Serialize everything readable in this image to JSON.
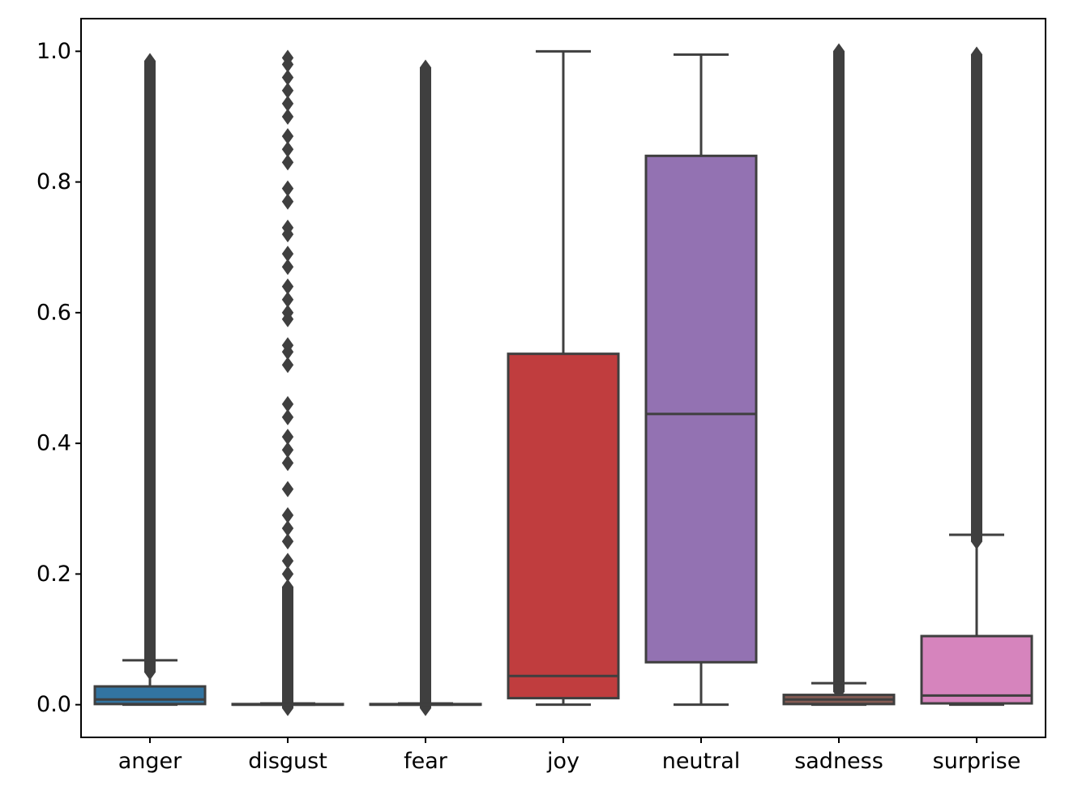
{
  "chart_data": {
    "type": "box",
    "title": "",
    "xlabel": "",
    "ylabel": "",
    "ylim": [
      -0.05,
      1.05
    ],
    "yticks": [
      0.0,
      0.2,
      0.4,
      0.6,
      0.8,
      1.0
    ],
    "ytick_labels": [
      "0.0",
      "0.2",
      "0.4",
      "0.6",
      "0.8",
      "1.0"
    ],
    "grid": false,
    "legend": "none",
    "categories": [
      "anger",
      "disgust",
      "fear",
      "joy",
      "neutral",
      "sadness",
      "surprise"
    ],
    "series": [
      {
        "category": "anger",
        "color": "#3274a1",
        "whislo": 0.0,
        "q1": 0.001,
        "median": 0.008,
        "q3": 0.028,
        "whishi": 0.068,
        "outliers_range": [
          0.05,
          0.985
        ],
        "outliers_discrete": []
      },
      {
        "category": "disgust",
        "color": "#e1812c",
        "whislo": 0.0,
        "q1": 0.0,
        "median": 0.0,
        "q3": 0.001,
        "whishi": 0.002,
        "outliers_range": [
          -0.005,
          0.18
        ],
        "outliers_discrete": [
          0.2,
          0.22,
          0.25,
          0.27,
          0.29,
          0.33,
          0.37,
          0.39,
          0.41,
          0.44,
          0.46,
          0.52,
          0.54,
          0.55,
          0.59,
          0.6,
          0.62,
          0.64,
          0.67,
          0.69,
          0.72,
          0.73,
          0.77,
          0.79,
          0.83,
          0.85,
          0.87,
          0.9,
          0.92,
          0.94,
          0.96,
          0.98,
          0.99
        ]
      },
      {
        "category": "fear",
        "color": "#3a923a",
        "whislo": 0.0,
        "q1": 0.0,
        "median": 0.0,
        "q3": 0.001,
        "whishi": 0.002,
        "outliers_range": [
          -0.005,
          0.975
        ],
        "outliers_discrete": []
      },
      {
        "category": "joy",
        "color": "#c03d3e",
        "whislo": 0.0,
        "q1": 0.01,
        "median": 0.044,
        "q3": 0.537,
        "whishi": 1.0,
        "outliers_range": null,
        "outliers_discrete": []
      },
      {
        "category": "neutral",
        "color": "#9372b2",
        "whislo": 0.0,
        "q1": 0.065,
        "median": 0.445,
        "q3": 0.84,
        "whishi": 0.995,
        "outliers_range": null,
        "outliers_discrete": []
      },
      {
        "category": "sadness",
        "color": "#845b53",
        "whislo": 0.0,
        "q1": 0.001,
        "median": 0.008,
        "q3": 0.015,
        "whishi": 0.033,
        "outliers_range": [
          0.02,
          1.0
        ],
        "outliers_discrete": []
      },
      {
        "category": "surprise",
        "color": "#d684bd",
        "whislo": 0.0,
        "q1": 0.002,
        "median": 0.014,
        "q3": 0.105,
        "whishi": 0.26,
        "outliers_range": [
          0.25,
          0.995
        ],
        "outliers_discrete": []
      }
    ]
  }
}
